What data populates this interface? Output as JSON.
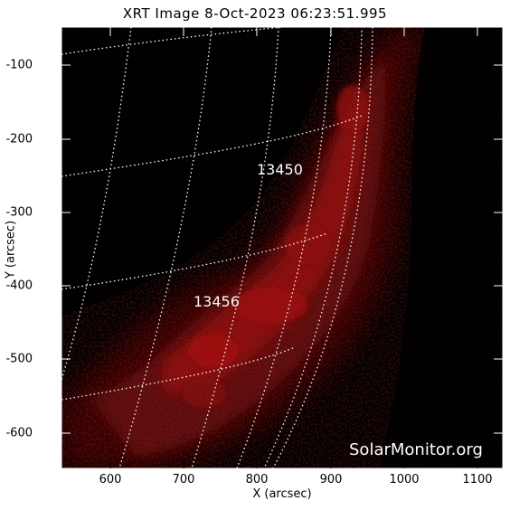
{
  "title": "XRT Image  8-Oct-2023 06:23:51.995",
  "x_axis": {
    "label": "X (arcsec)",
    "ticks": [
      "600",
      "700",
      "800",
      "900",
      "1000",
      "1100"
    ]
  },
  "y_axis": {
    "label": "Y (arcsec)",
    "ticks": [
      "-100",
      "-200",
      "-300",
      "-400",
      "-500",
      "-600"
    ]
  },
  "active_regions": [
    {
      "number": "13450"
    },
    {
      "number": "13456"
    }
  ],
  "watermark": "SolarMonitor.org",
  "colors": {
    "background": "#000000",
    "emission": "#b01010",
    "grid": "#ffffff",
    "frame": "#ffffff"
  }
}
